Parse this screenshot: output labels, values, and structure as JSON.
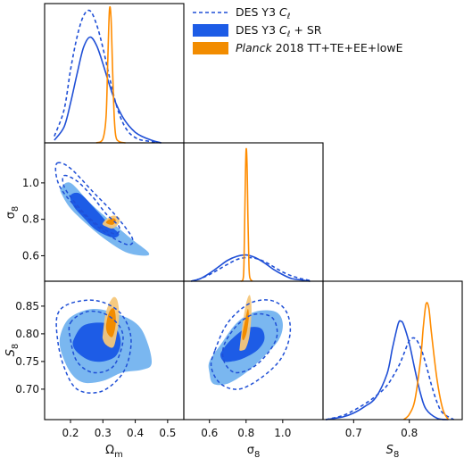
{
  "chart_data": {
    "type": "scatter",
    "colors": {
      "des_dashed": "#1f4fd6",
      "des_sr_solid": "#1f4fd6",
      "des_sr_fill_inner": "#1d5ce6",
      "des_sr_fill_outer": "#7ab7f0",
      "planck_line": "#ff8c00",
      "planck_fill_inner": "#f28c00",
      "planck_fill_outer": "#f5c77a"
    },
    "legend": [
      {
        "label_main": "DES Y3 ",
        "label_it": "C",
        "label_sub": "ℓ",
        "label_tail": "",
        "style": "dashed"
      },
      {
        "label_main": "DES Y3 ",
        "label_it": "C",
        "label_sub": "ℓ",
        "label_tail": " + SR",
        "style": "filled-blue"
      },
      {
        "label_main": "",
        "label_it": "Planck",
        "label_sub": "",
        "label_tail": " 2018 TT+TE+EE+lowE",
        "style": "filled-orange"
      }
    ],
    "parameters": {
      "omega_m": {
        "range": [
          0.12,
          0.55
        ],
        "ticks": [
          0.2,
          0.3,
          0.4,
          0.5
        ],
        "tick_labels": [
          "0.2",
          "0.3",
          "0.4",
          "0.5"
        ],
        "label_main": "Ω",
        "label_sub": "m"
      },
      "sigma8": {
        "range": [
          0.46,
          1.22
        ],
        "ticks": [
          0.6,
          0.8,
          1.0
        ],
        "tick_labels": [
          "0.6",
          "0.8",
          "1.0"
        ],
        "label_main": "σ",
        "label_sub": "8"
      },
      "S8": {
        "range": [
          0.645,
          0.895
        ],
        "ticks": [
          0.7,
          0.75,
          0.8,
          0.85
        ],
        "tick_labels": [
          "0.70",
          "0.75",
          "0.80",
          "0.85"
        ],
        "diag_ticks": [
          0.7,
          0.8
        ],
        "diag_tick_labels": [
          "0.7",
          "0.8"
        ],
        "label_main": "S",
        "label_sub": "8"
      }
    },
    "marginals": {
      "omega_m": {
        "des_dashed": {
          "x": [
            0.15,
            0.18,
            0.2,
            0.22,
            0.24,
            0.26,
            0.28,
            0.3,
            0.32,
            0.34,
            0.36,
            0.38,
            0.4,
            0.42,
            0.45,
            0.48
          ],
          "y": [
            0.05,
            0.25,
            0.55,
            0.8,
            0.96,
            1.0,
            0.9,
            0.72,
            0.5,
            0.3,
            0.16,
            0.08,
            0.04,
            0.02,
            0.01,
            0.0
          ]
        },
        "des_sr": {
          "x": [
            0.15,
            0.18,
            0.2,
            0.22,
            0.24,
            0.26,
            0.28,
            0.3,
            0.32,
            0.34,
            0.36,
            0.38,
            0.4,
            0.42,
            0.45,
            0.48
          ],
          "y": [
            0.02,
            0.12,
            0.3,
            0.52,
            0.72,
            0.8,
            0.74,
            0.6,
            0.44,
            0.3,
            0.2,
            0.13,
            0.08,
            0.05,
            0.02,
            0.0
          ]
        },
        "planck": {
          "x": [
            0.28,
            0.3,
            0.31,
            0.315,
            0.32,
            0.325,
            0.33,
            0.335,
            0.34,
            0.35,
            0.37
          ],
          "y": [
            0.0,
            0.03,
            0.2,
            0.6,
            1.0,
            0.95,
            0.55,
            0.2,
            0.05,
            0.01,
            0.0
          ]
        }
      },
      "sigma8": {
        "des_dashed": {
          "x": [
            0.5,
            0.55,
            0.6,
            0.65,
            0.7,
            0.75,
            0.8,
            0.85,
            0.9,
            0.95,
            1.0,
            1.05,
            1.1,
            1.15
          ],
          "y": [
            0.0,
            0.02,
            0.05,
            0.09,
            0.13,
            0.165,
            0.18,
            0.175,
            0.15,
            0.11,
            0.07,
            0.04,
            0.02,
            0.005
          ]
        },
        "des_sr": {
          "x": [
            0.5,
            0.55,
            0.6,
            0.65,
            0.7,
            0.75,
            0.8,
            0.85,
            0.9,
            0.95,
            1.0,
            1.05,
            1.1,
            1.15
          ],
          "y": [
            0.0,
            0.02,
            0.06,
            0.11,
            0.16,
            0.19,
            0.2,
            0.18,
            0.14,
            0.09,
            0.05,
            0.02,
            0.01,
            0.0
          ]
        },
        "planck": {
          "x": [
            0.77,
            0.785,
            0.79,
            0.795,
            0.8,
            0.805,
            0.81,
            0.815,
            0.82,
            0.835
          ],
          "y": [
            0.0,
            0.03,
            0.25,
            0.7,
            1.0,
            0.9,
            0.5,
            0.15,
            0.03,
            0.0
          ]
        }
      },
      "S8": {
        "des_dashed": {
          "x": [
            0.65,
            0.68,
            0.7,
            0.72,
            0.74,
            0.76,
            0.78,
            0.79,
            0.8,
            0.81,
            0.82,
            0.83,
            0.84,
            0.85,
            0.86,
            0.88
          ],
          "y": [
            0.0,
            0.03,
            0.07,
            0.12,
            0.18,
            0.26,
            0.4,
            0.5,
            0.6,
            0.62,
            0.55,
            0.42,
            0.26,
            0.13,
            0.05,
            0.0
          ]
        },
        "des_sr": {
          "x": [
            0.65,
            0.68,
            0.7,
            0.72,
            0.74,
            0.76,
            0.77,
            0.78,
            0.785,
            0.79,
            0.8,
            0.81,
            0.82,
            0.83,
            0.85,
            0.87
          ],
          "y": [
            0.0,
            0.02,
            0.05,
            0.1,
            0.17,
            0.35,
            0.55,
            0.73,
            0.75,
            0.72,
            0.58,
            0.38,
            0.2,
            0.08,
            0.01,
            0.0
          ]
        },
        "planck": {
          "x": [
            0.79,
            0.8,
            0.81,
            0.82,
            0.825,
            0.83,
            0.835,
            0.84,
            0.85,
            0.86,
            0.87
          ],
          "y": [
            0.0,
            0.04,
            0.15,
            0.45,
            0.7,
            0.88,
            0.85,
            0.65,
            0.3,
            0.08,
            0.0
          ]
        }
      }
    },
    "contours": {
      "omega_m__sigma8": {
        "des_sr_95": {
          "x": [
            0.17,
            0.2,
            0.26,
            0.33,
            0.39,
            0.44,
            0.43,
            0.37,
            0.3,
            0.24,
            0.2,
            0.175
          ],
          "y": [
            0.97,
            1.0,
            0.89,
            0.78,
            0.69,
            0.62,
            0.6,
            0.62,
            0.7,
            0.79,
            0.86,
            0.93
          ]
        },
        "des_sr_68": {
          "x": [
            0.2,
            0.23,
            0.28,
            0.32,
            0.35,
            0.33,
            0.28,
            0.24,
            0.21
          ],
          "y": [
            0.93,
            0.94,
            0.85,
            0.77,
            0.72,
            0.7,
            0.74,
            0.81,
            0.87
          ]
        },
        "des_dashed_95": {
          "x": [
            0.16,
            0.2,
            0.27,
            0.34,
            0.39,
            0.38,
            0.33,
            0.27,
            0.21,
            0.17,
            0.155
          ],
          "y": [
            1.11,
            1.08,
            0.95,
            0.82,
            0.7,
            0.66,
            0.7,
            0.78,
            0.88,
            0.97,
            1.05
          ]
        },
        "des_dashed_68": {
          "x": [
            0.18,
            0.22,
            0.27,
            0.31,
            0.35,
            0.34,
            0.3,
            0.25,
            0.21,
            0.18
          ],
          "y": [
            1.04,
            1.01,
            0.92,
            0.83,
            0.76,
            0.72,
            0.75,
            0.82,
            0.9,
            0.98
          ]
        },
        "planck_95": {
          "x": [
            0.3,
            0.31,
            0.33,
            0.35,
            0.35,
            0.33,
            0.31,
            0.3
          ],
          "y": [
            0.78,
            0.8,
            0.82,
            0.81,
            0.78,
            0.75,
            0.76,
            0.77
          ]
        },
        "planck_68": {
          "x": [
            0.31,
            0.32,
            0.335,
            0.34,
            0.33,
            0.315
          ],
          "y": [
            0.785,
            0.8,
            0.805,
            0.79,
            0.77,
            0.775
          ]
        }
      },
      "omega_m__S8": {
        "des_sr_95": {
          "x": [
            0.17,
            0.2,
            0.27,
            0.35,
            0.41,
            0.44,
            0.45,
            0.42,
            0.36,
            0.3,
            0.24,
            0.2,
            0.17
          ],
          "y": [
            0.8,
            0.83,
            0.845,
            0.835,
            0.815,
            0.78,
            0.745,
            0.735,
            0.73,
            0.715,
            0.712,
            0.73,
            0.77
          ]
        },
        "des_sr_68": {
          "x": [
            0.21,
            0.24,
            0.3,
            0.34,
            0.355,
            0.34,
            0.3,
            0.26,
            0.23,
            0.21
          ],
          "y": [
            0.79,
            0.815,
            0.82,
            0.81,
            0.785,
            0.76,
            0.75,
            0.752,
            0.762,
            0.775
          ]
        },
        "des_dashed_95": {
          "x": [
            0.16,
            0.2,
            0.28,
            0.35,
            0.385,
            0.38,
            0.35,
            0.29,
            0.22,
            0.18,
            0.16
          ],
          "y": [
            0.835,
            0.855,
            0.86,
            0.84,
            0.8,
            0.755,
            0.72,
            0.695,
            0.7,
            0.74,
            0.79
          ]
        },
        "des_dashed_68": {
          "x": [
            0.2,
            0.25,
            0.31,
            0.355,
            0.36,
            0.33,
            0.27,
            0.22,
            0.2
          ],
          "y": [
            0.82,
            0.84,
            0.835,
            0.81,
            0.78,
            0.74,
            0.73,
            0.75,
            0.79
          ]
        },
        "planck_95": {
          "x": [
            0.3,
            0.31,
            0.33,
            0.345,
            0.35,
            0.34,
            0.33,
            0.31,
            0.3
          ],
          "y": [
            0.8,
            0.84,
            0.865,
            0.86,
            0.83,
            0.79,
            0.775,
            0.78,
            0.79
          ]
        },
        "planck_68": {
          "x": [
            0.31,
            0.32,
            0.335,
            0.34,
            0.33,
            0.315
          ],
          "y": [
            0.815,
            0.84,
            0.845,
            0.82,
            0.795,
            0.8
          ]
        }
      },
      "sigma8__S8": {
        "des_sr_95": {
          "x": [
            0.6,
            0.66,
            0.75,
            0.85,
            0.96,
            1.0,
            0.98,
            0.9,
            0.8,
            0.7,
            0.62,
            0.6
          ],
          "y": [
            0.75,
            0.78,
            0.82,
            0.84,
            0.84,
            0.82,
            0.79,
            0.76,
            0.73,
            0.71,
            0.71,
            0.73
          ]
        },
        "des_sr_68": {
          "x": [
            0.67,
            0.72,
            0.8,
            0.88,
            0.9,
            0.86,
            0.78,
            0.72,
            0.68,
            0.66
          ],
          "y": [
            0.77,
            0.79,
            0.81,
            0.81,
            0.79,
            0.77,
            0.755,
            0.75,
            0.75,
            0.76
          ]
        },
        "des_dashed_95": {
          "x": [
            0.63,
            0.7,
            0.82,
            0.94,
            1.02,
            1.04,
            0.99,
            0.88,
            0.76,
            0.66,
            0.61
          ],
          "y": [
            0.77,
            0.82,
            0.855,
            0.86,
            0.84,
            0.8,
            0.755,
            0.72,
            0.7,
            0.71,
            0.74
          ]
        },
        "des_dashed_68": {
          "x": [
            0.68,
            0.75,
            0.84,
            0.94,
            0.97,
            0.93,
            0.84,
            0.74,
            0.68
          ],
          "y": [
            0.78,
            0.815,
            0.835,
            0.83,
            0.8,
            0.77,
            0.74,
            0.73,
            0.75
          ]
        },
        "planck_95": {
          "x": [
            0.765,
            0.78,
            0.8,
            0.82,
            0.83,
            0.82,
            0.8,
            0.78,
            0.765
          ],
          "y": [
            0.775,
            0.815,
            0.855,
            0.87,
            0.845,
            0.8,
            0.775,
            0.77,
            0.77
          ]
        },
        "planck_68": {
          "x": [
            0.78,
            0.795,
            0.81,
            0.815,
            0.805,
            0.79,
            0.78
          ],
          "y": [
            0.8,
            0.825,
            0.845,
            0.83,
            0.805,
            0.79,
            0.79
          ]
        }
      }
    }
  }
}
